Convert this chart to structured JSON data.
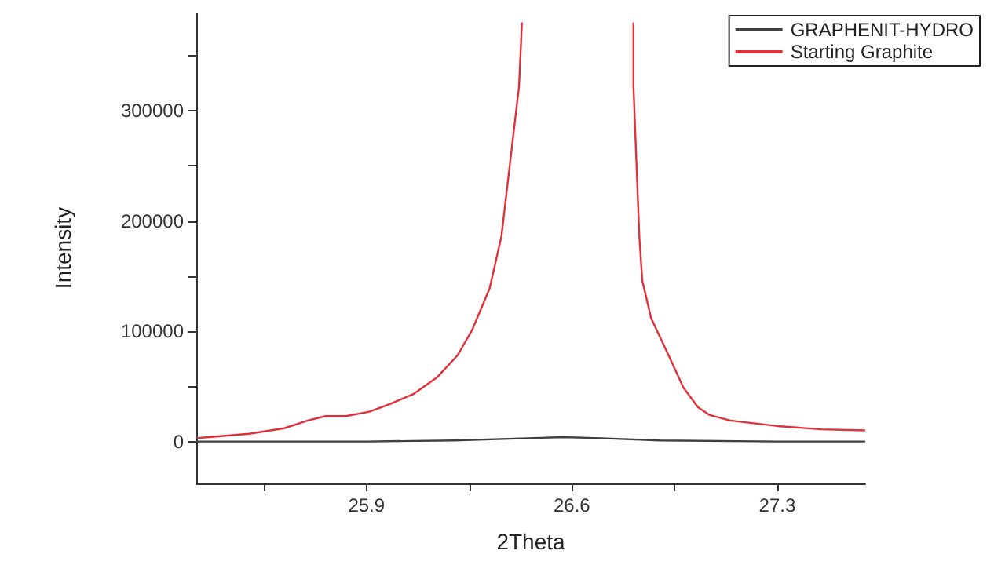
{
  "chart_data": {
    "type": "line",
    "xlabel": "2Theta",
    "ylabel": "Intensity",
    "xlim": [
      25.32,
      27.6
    ],
    "xticks": [
      {
        "value": 25.55,
        "label": null
      },
      25.9,
      {
        "value": 26.25,
        "label": null
      },
      26.6,
      {
        "value": 26.95,
        "label": null
      },
      27.3
    ],
    "ylim": [
      -38000,
      389000
    ],
    "yticks": [
      0,
      {
        "value": 50000,
        "label": null
      },
      100000,
      {
        "value": 150000,
        "label": null
      },
      200000,
      {
        "value": 250000,
        "label": null
      },
      300000,
      {
        "value": 350000,
        "label": null
      }
    ],
    "grid": false,
    "legend": "top right",
    "marker": "none",
    "line_style": "solid",
    "series": [
      {
        "name": "GRAPHENIT-HYDRO",
        "color": "#404040",
        "x": [
          25.32,
          25.9,
          26.2,
          26.45,
          26.57,
          26.7,
          26.9,
          27.3,
          27.6
        ],
        "values": [
          0,
          0,
          1000,
          3000,
          4000,
          3000,
          1000,
          0,
          0
        ]
      },
      {
        "name": "Starting Graphite",
        "color": "#e0303a",
        "x": [
          25.32,
          25.5,
          25.62,
          25.7,
          25.76,
          25.83,
          25.91,
          25.98,
          26.06,
          26.14,
          26.21,
          26.26,
          26.32,
          26.36,
          26.39,
          26.42,
          26.43,
          26.6,
          26.81,
          26.81,
          26.82,
          26.83,
          26.84,
          26.87,
          26.93,
          26.98,
          27.03,
          27.07,
          27.14,
          27.3,
          27.45,
          27.6
        ],
        "values": [
          3000,
          7000,
          12000,
          19000,
          23000,
          23000,
          27000,
          34000,
          43000,
          58000,
          78000,
          101000,
          139000,
          186000,
          254000,
          322000,
          380000,
          null,
          380000,
          322000,
          254000,
          186000,
          146000,
          112000,
          78000,
          49000,
          31000,
          24000,
          19000,
          14000,
          11000,
          10000
        ]
      }
    ]
  }
}
